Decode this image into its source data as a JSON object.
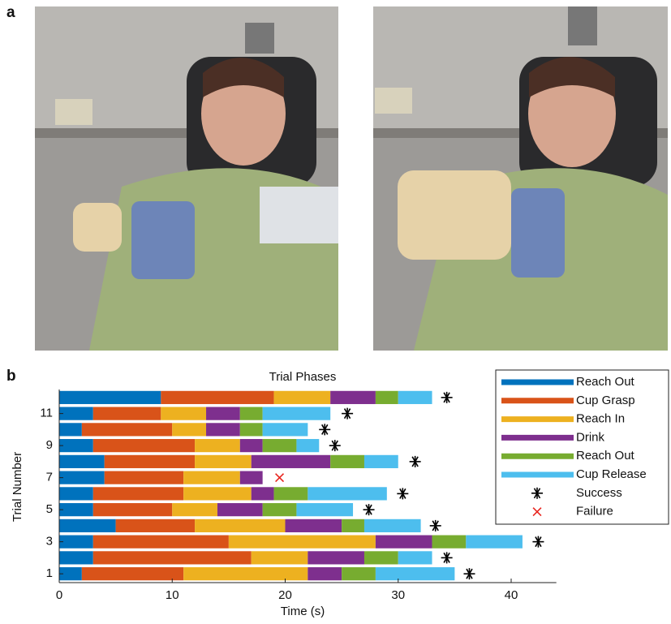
{
  "figure": {
    "panel_a_label": "a",
    "panel_b_label": "b"
  },
  "chart_data": {
    "type": "stacked-barh",
    "title": "Trial Phases",
    "x_label": "Time (s)",
    "y_label": "Trial Number",
    "categories": [
      1,
      2,
      3,
      4,
      5,
      6,
      7,
      8,
      9,
      10,
      11,
      12
    ],
    "xlim": [
      0,
      44
    ],
    "xticks": [
      0,
      10,
      20,
      30,
      40
    ],
    "ylim": [
      0.45,
      12.5
    ],
    "yticks": [
      1,
      3,
      5,
      7,
      9,
      11
    ],
    "series": [
      {
        "name": "Reach Out",
        "color": "#0072bd",
        "values": [
          2,
          3,
          3,
          5,
          3,
          3,
          4,
          4,
          3,
          2,
          3,
          9
        ]
      },
      {
        "name": "Cup Grasp",
        "color": "#d95319",
        "values": [
          9,
          14,
          12,
          7,
          7,
          8,
          7,
          8,
          9,
          8,
          6,
          10
        ]
      },
      {
        "name": "Reach In",
        "color": "#edb120",
        "values": [
          11,
          5,
          13,
          8,
          4,
          6,
          5,
          5,
          4,
          3,
          4,
          5
        ]
      },
      {
        "name": "Drink",
        "color": "#7e2f8e",
        "values": [
          3,
          5,
          5,
          5,
          4,
          2,
          2,
          7,
          2,
          3,
          3,
          4
        ]
      },
      {
        "name": "Reach Out",
        "color": "#77ac30",
        "values": [
          3,
          3,
          3,
          2,
          3,
          3,
          null,
          3,
          3,
          2,
          2,
          2
        ]
      },
      {
        "name": "Cup Release",
        "color": "#4dbeee",
        "values": [
          7,
          3,
          5,
          5,
          5,
          7,
          null,
          3,
          2,
          4,
          6,
          3
        ]
      }
    ],
    "points": [
      {
        "name": "Success",
        "color": "#000000",
        "marker": "asterisk",
        "x": [
          36.3,
          34.3,
          42.4,
          33.3,
          27.4,
          30.4,
          null,
          31.5,
          24.4,
          23.5,
          25.5,
          34.3
        ]
      },
      {
        "name": "Failure",
        "color": "#e8251f",
        "marker": "cross",
        "x": [
          null,
          null,
          null,
          null,
          null,
          null,
          19.5,
          null,
          null,
          null,
          null,
          null
        ]
      }
    ]
  }
}
